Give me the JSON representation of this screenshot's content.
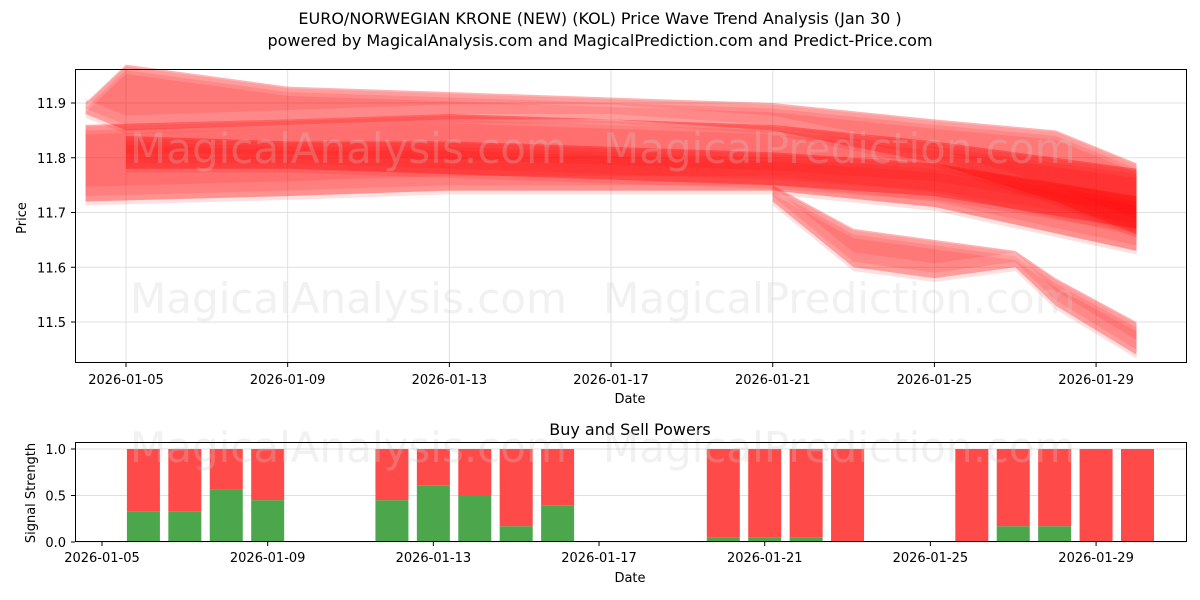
{
  "header": {
    "title": "EURO/NORWEGIAN KRONE (NEW) (KOL) Price Wave Trend Analysis (Jan 30 )",
    "subtitle": "powered by MagicalAnalysis.com and MagicalPrediction.com and Predict-Price.com"
  },
  "watermarks": [
    "MagicalAnalysis.com",
    "MagicalPrediction.com"
  ],
  "colors": {
    "wave": "#ff0000",
    "buy": "#4ca64c",
    "sell": "#ff4a4a",
    "grid": "#e0e0e0"
  },
  "chart_data": [
    {
      "type": "area",
      "title": "Price Wave Trend Analysis",
      "xlabel": "Date",
      "ylabel": "Price",
      "ylim": [
        11.43,
        11.96
      ],
      "xlim": [
        "2026-01-03",
        "2026-01-31"
      ],
      "grid": true,
      "yticks": [
        "11.5",
        "11.6",
        "11.7",
        "11.8",
        "11.9"
      ],
      "xticks": [
        "2026-01-05",
        "2026-01-09",
        "2026-01-13",
        "2026-01-17",
        "2026-01-21",
        "2026-01-25",
        "2026-01-29"
      ],
      "series": [
        {
          "name": "wave-upper-band",
          "x": [
            "2026-01-04",
            "2026-01-05",
            "2026-01-09",
            "2026-01-13",
            "2026-01-17",
            "2026-01-21",
            "2026-01-25",
            "2026-01-28",
            "2026-01-30"
          ],
          "upper": [
            11.9,
            11.97,
            11.93,
            11.92,
            11.91,
            11.9,
            11.87,
            11.85,
            11.79
          ],
          "lower": [
            11.88,
            11.85,
            11.86,
            11.87,
            11.87,
            11.85,
            11.79,
            11.72,
            11.66
          ]
        },
        {
          "name": "wave-main-band",
          "x": [
            "2026-01-04",
            "2026-01-09",
            "2026-01-13",
            "2026-01-17",
            "2026-01-21",
            "2026-01-25",
            "2026-01-30"
          ],
          "upper": [
            11.86,
            11.87,
            11.88,
            11.87,
            11.86,
            11.83,
            11.78
          ],
          "lower": [
            11.72,
            11.73,
            11.74,
            11.74,
            11.74,
            11.71,
            11.63
          ]
        },
        {
          "name": "wave-core",
          "x": [
            "2026-01-05",
            "2026-01-09",
            "2026-01-13",
            "2026-01-17",
            "2026-01-21",
            "2026-01-25",
            "2026-01-30"
          ],
          "upper": [
            11.84,
            11.83,
            11.83,
            11.82,
            11.81,
            11.79,
            11.73
          ],
          "lower": [
            11.78,
            11.78,
            11.77,
            11.76,
            11.75,
            11.73,
            11.67
          ]
        },
        {
          "name": "wave-lower-forecast",
          "x": [
            "2026-01-21",
            "2026-01-23",
            "2026-01-25",
            "2026-01-27",
            "2026-01-28",
            "2026-01-30"
          ],
          "upper": [
            11.75,
            11.67,
            11.65,
            11.63,
            11.58,
            11.5
          ],
          "lower": [
            11.72,
            11.6,
            11.58,
            11.6,
            11.53,
            11.44
          ]
        }
      ]
    },
    {
      "type": "bar",
      "title": "Buy and Sell Powers",
      "xlabel": "Date",
      "ylabel": "Signal Strength",
      "ylim": [
        0,
        1.05
      ],
      "yticks": [
        "0.0",
        "0.5",
        "1.0"
      ],
      "xticks": [
        "2026-01-05",
        "2026-01-09",
        "2026-01-13",
        "2026-01-17",
        "2026-01-21",
        "2026-01-25",
        "2026-01-29"
      ],
      "categories": [
        "2026-01-06",
        "2026-01-07",
        "2026-01-08",
        "2026-01-09",
        "2026-01-12",
        "2026-01-13",
        "2026-01-14",
        "2026-01-15",
        "2026-01-16",
        "2026-01-20",
        "2026-01-21",
        "2026-01-22",
        "2026-01-23",
        "2026-01-26",
        "2026-01-27",
        "2026-01-28",
        "2026-01-29",
        "2026-01-30"
      ],
      "series": [
        {
          "name": "Buy",
          "values": [
            0.33,
            0.33,
            0.56,
            0.45,
            0.45,
            0.61,
            0.5,
            0.17,
            0.39,
            0.05,
            0.05,
            0.05,
            0.0,
            0.0,
            0.17,
            0.17,
            0.0,
            0.0
          ]
        },
        {
          "name": "Sell",
          "values": [
            0.67,
            0.67,
            0.44,
            0.55,
            0.55,
            0.39,
            0.5,
            0.83,
            0.61,
            0.95,
            0.95,
            0.95,
            1.0,
            1.0,
            0.83,
            0.83,
            1.0,
            1.0
          ]
        }
      ]
    }
  ]
}
